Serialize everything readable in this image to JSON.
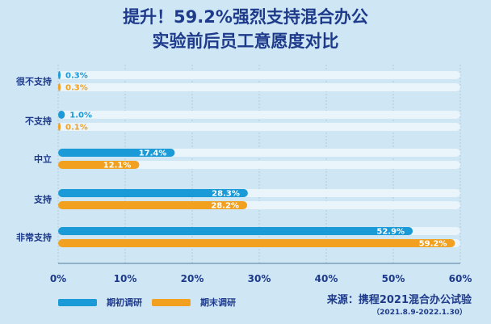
{
  "title_line1": "提升！59.2%强烈支持混合办公",
  "title_line2": "实验前后员工意愿度对比",
  "source_line1": "来源：携程2021混合办公试验",
  "source_line2": "（2021.8.9-2022.1.30）",
  "colors": {
    "series1": "#1a9ad7",
    "series2": "#f2a01f",
    "track": "#e9f4fb",
    "text": "#1e3a8a"
  },
  "chart_data": {
    "type": "bar",
    "orientation": "horizontal",
    "categories": [
      "很不支持",
      "不支持",
      "中立",
      "支持",
      "非常支持"
    ],
    "series": [
      {
        "name": "期初调研",
        "values": [
          0.3,
          1.0,
          17.4,
          28.3,
          52.9
        ],
        "labels": [
          "0.3%",
          "1.0%",
          "17.4%",
          "28.3%",
          "52.9%"
        ]
      },
      {
        "name": "期末调研",
        "values": [
          0.3,
          0.1,
          12.1,
          28.2,
          59.2
        ],
        "labels": [
          "0.3%",
          "0.1%",
          "12.1%",
          "28.2%",
          "59.2%"
        ]
      }
    ],
    "xlim": [
      0,
      60
    ],
    "xticks": [
      "0%",
      "10%",
      "20%",
      "30%",
      "40%",
      "50%",
      "60%"
    ],
    "legend": "bottom-left"
  }
}
